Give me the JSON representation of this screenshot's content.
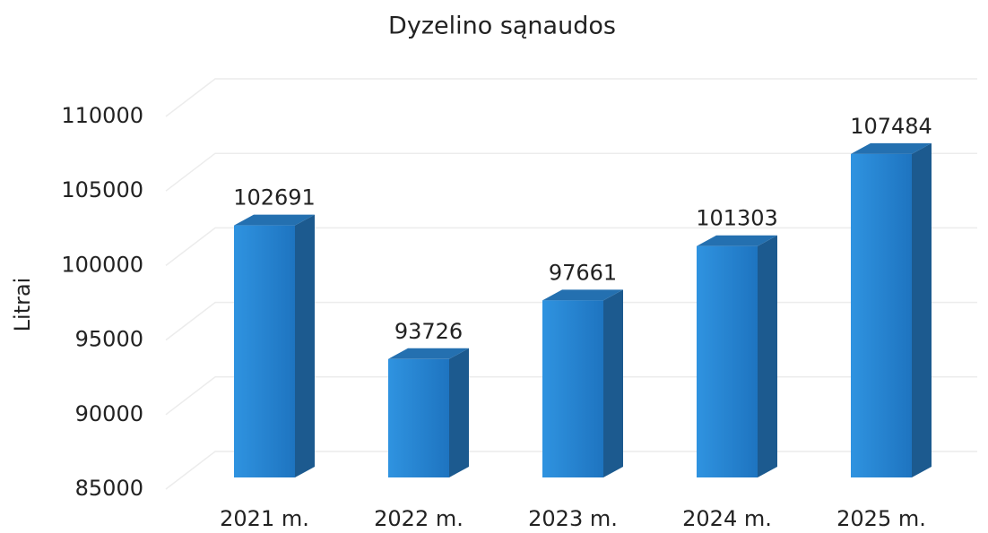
{
  "chart_data": {
    "type": "bar3d",
    "title": "Dyzelino sąnaudos",
    "y_label": "Litrai",
    "categories": [
      "2021 m.",
      "2022 m.",
      "2023 m.",
      "2024 m.",
      "2025 m."
    ],
    "values": [
      102691,
      93726,
      97661,
      101303,
      107484
    ],
    "color": "#2b8ad8",
    "ylim": [
      85000,
      110000
    ],
    "yticks": [
      85000,
      90000,
      95000,
      100000,
      105000,
      110000
    ],
    "grid": true
  }
}
